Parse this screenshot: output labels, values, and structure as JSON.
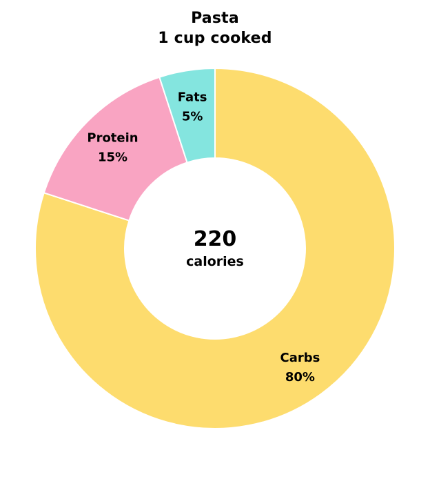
{
  "title": "Pasta",
  "subtitle": "1 cup cooked",
  "center": {
    "value": "220",
    "unit": "calories"
  },
  "chart_data": {
    "type": "pie",
    "variant": "donut",
    "title": "Pasta",
    "subtitle": "1 cup cooked",
    "slices": [
      {
        "name": "Carbs",
        "value": 80,
        "label": "80%",
        "color": "#FDDC6E"
      },
      {
        "name": "Protein",
        "value": 15,
        "label": "15%",
        "color": "#F9A4C2"
      },
      {
        "name": "Fats",
        "value": 5,
        "label": "5%",
        "color": "#84E5DF"
      }
    ],
    "center_value": "220",
    "center_label": "calories"
  }
}
